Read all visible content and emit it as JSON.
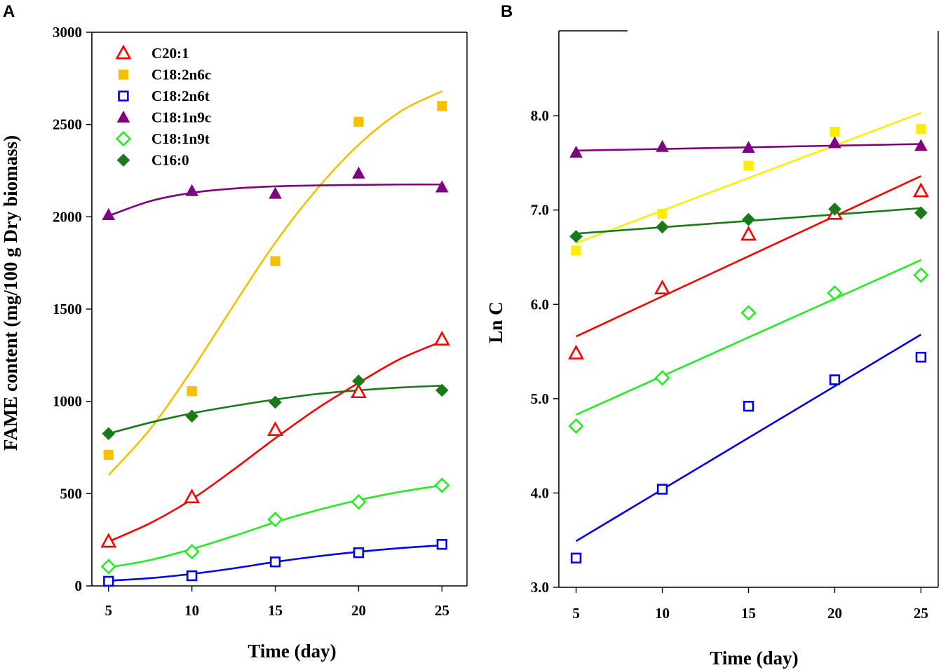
{
  "colors": {
    "C20:1": "#ff0000",
    "C18:2n6c": "#f5c000",
    "C18:2n6c_fit": "#f5c000",
    "C18:2n6c_b": "#ffee00",
    "C18:2n6t": "#0000ee",
    "C18:1n9c": "#800080",
    "C18:1n9t": "#22ee22",
    "C16:0": "#1a7a1a"
  },
  "chart_data": [
    {
      "panel": "A",
      "type": "scatter",
      "title": "",
      "xlabel": "Time (day)",
      "ylabel": "FAME content (mg/100 g Dry biomass)",
      "xlim": [
        4,
        26.5
      ],
      "ylim": [
        0,
        3000
      ],
      "x_ticks": [
        "5",
        "10",
        "15",
        "20",
        "25"
      ],
      "y_ticks": [
        "0",
        "500",
        "1000",
        "1500",
        "2000",
        "2500",
        "3000"
      ],
      "legend": [
        "C20:1",
        "C18:2n6c",
        "C18:2n6t",
        "C18:1n9c",
        "C18:1n9t",
        "C16:0"
      ],
      "legend_position": "top-left",
      "x": [
        5,
        10,
        15,
        20,
        25
      ],
      "series": [
        {
          "name": "C20:1",
          "marker": "triangle-open",
          "values": [
            240,
            480,
            845,
            1050,
            1335
          ],
          "fit_x": [
            5,
            7.5,
            10,
            12.5,
            15,
            17.5,
            20,
            22.5,
            25
          ],
          "fit_y": [
            240,
            340,
            470,
            630,
            800,
            960,
            1100,
            1230,
            1325
          ]
        },
        {
          "name": "C18:2n6c",
          "marker": "square-filled",
          "values": [
            710,
            1055,
            1760,
            2515,
            2600
          ],
          "fit_x": [
            5,
            7.5,
            10,
            12.5,
            15,
            17.5,
            20,
            22.5,
            25
          ],
          "fit_y": [
            600,
            850,
            1170,
            1520,
            1860,
            2150,
            2390,
            2570,
            2680
          ]
        },
        {
          "name": "C18:2n6t",
          "marker": "square-open",
          "values": [
            25,
            55,
            130,
            180,
            225
          ],
          "fit_x": [
            5,
            7.5,
            10,
            12.5,
            15,
            17.5,
            20,
            22.5,
            25
          ],
          "fit_y": [
            28,
            42,
            65,
            95,
            130,
            160,
            185,
            205,
            220
          ]
        },
        {
          "name": "C18:1n9c",
          "marker": "triangle-filled",
          "values": [
            2010,
            2140,
            2125,
            2235,
            2160
          ],
          "fit_x": [
            5,
            7.5,
            10,
            12.5,
            15,
            17.5,
            20,
            22.5,
            25
          ],
          "fit_y": [
            2005,
            2085,
            2130,
            2153,
            2165,
            2170,
            2173,
            2175,
            2175
          ]
        },
        {
          "name": "C18:1n9t",
          "marker": "diamond-open",
          "values": [
            105,
            185,
            360,
            455,
            545
          ],
          "fit_x": [
            5,
            7.5,
            10,
            12.5,
            15,
            17.5,
            20,
            22.5,
            25
          ],
          "fit_y": [
            100,
            140,
            200,
            270,
            345,
            410,
            465,
            510,
            545
          ]
        },
        {
          "name": "C16:0",
          "marker": "diamond-filled",
          "values": [
            825,
            920,
            995,
            1110,
            1060
          ],
          "fit_x": [
            5,
            7.5,
            10,
            12.5,
            15,
            17.5,
            20,
            22.5,
            25
          ],
          "fit_y": [
            825,
            885,
            935,
            975,
            1010,
            1040,
            1060,
            1075,
            1085
          ]
        }
      ]
    },
    {
      "panel": "B",
      "type": "scatter",
      "title": "",
      "xlabel": "Time (day)",
      "ylabel": "Ln C",
      "xlim": [
        4,
        26
      ],
      "ylim": [
        3.0,
        8.9
      ],
      "x_ticks": [
        "5",
        "10",
        "15",
        "20",
        "25"
      ],
      "y_ticks": [
        "3.0",
        "4.0",
        "5.0",
        "6.0",
        "7.0",
        "8.0"
      ],
      "x": [
        5,
        10,
        15,
        20,
        25
      ],
      "series": [
        {
          "name": "C20:1",
          "marker": "triangle-open",
          "values": [
            5.48,
            6.17,
            6.74,
            6.96,
            7.2
          ],
          "fit": [
            5.66,
            7.36
          ]
        },
        {
          "name": "C18:2n6c",
          "marker": "square-filled",
          "values": [
            6.57,
            6.96,
            7.47,
            7.83,
            7.86
          ],
          "fit": [
            6.65,
            8.03
          ]
        },
        {
          "name": "C18:2n6t",
          "marker": "square-open",
          "values": [
            3.31,
            4.04,
            4.92,
            5.2,
            5.44
          ],
          "fit": [
            3.49,
            5.68
          ]
        },
        {
          "name": "C18:1n9c",
          "marker": "triangle-filled",
          "values": [
            7.61,
            7.67,
            7.66,
            7.71,
            7.68
          ],
          "fit": [
            7.63,
            7.7
          ]
        },
        {
          "name": "C18:1n9t",
          "marker": "diamond-open",
          "values": [
            4.71,
            5.22,
            5.91,
            6.12,
            6.31
          ],
          "fit": [
            4.83,
            6.47
          ]
        },
        {
          "name": "C16:0",
          "marker": "diamond-filled",
          "values": [
            6.72,
            6.82,
            6.9,
            7.01,
            6.97
          ],
          "fit": [
            6.75,
            7.02
          ]
        }
      ]
    }
  ]
}
